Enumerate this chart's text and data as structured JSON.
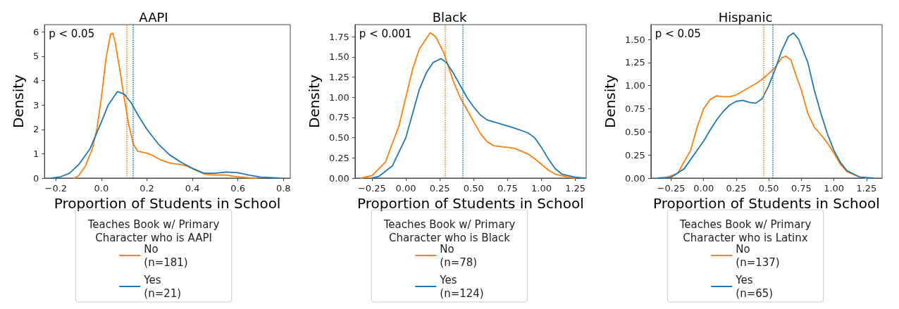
{
  "chart_data": [
    {
      "type": "line",
      "title": "AAPI",
      "xlabel": "Proportion of Students in School",
      "ylabel": "Density",
      "legend_title": "Teaches Book w/ Primary\nCharacter who is AAPI",
      "legend": "bottom",
      "grid": false,
      "marker": "none",
      "line_style": "solid",
      "annotations": [
        "p < 0.05"
      ],
      "xlim": [
        -0.25,
        0.83
      ],
      "ylim": [
        0,
        6.3
      ],
      "xticks": [
        {
          "value": -0.2,
          "label": "−0.2"
        },
        {
          "value": 0,
          "label": "0.0"
        },
        {
          "value": 0.2,
          "label": "0.2"
        },
        {
          "value": 0.4,
          "label": "0.4"
        },
        {
          "value": 0.6,
          "label": "0.6"
        },
        {
          "value": 0.8,
          "label": "0.8"
        }
      ],
      "yticks": [
        0,
        1,
        2,
        3,
        4,
        5,
        6
      ],
      "ref_lines": [
        {
          "axis": "x",
          "value": 0.11,
          "color": "#ff7f0e",
          "line_style": "dotted"
        },
        {
          "axis": "x",
          "value": 0.14,
          "color": "#1f77b4",
          "line_style": "dotted"
        }
      ],
      "series": [
        {
          "name": "No\n(n=181)",
          "color": "#ff7f0e",
          "x": [
            -0.12,
            -0.1,
            -0.07,
            -0.04,
            -0.02,
            0.0,
            0.02,
            0.04,
            0.05,
            0.06,
            0.08,
            0.1,
            0.12,
            0.14,
            0.16,
            0.2,
            0.22,
            0.26,
            0.3,
            0.35,
            0.38,
            0.42,
            0.46,
            0.5,
            0.55,
            0.6,
            0.65,
            0.68
          ],
          "values": [
            0,
            0.1,
            0.5,
            1.2,
            2.0,
            3.3,
            4.9,
            5.9,
            5.95,
            5.6,
            4.5,
            3.3,
            2.2,
            1.4,
            1.1,
            1.02,
            0.95,
            0.75,
            0.62,
            0.55,
            0.48,
            0.3,
            0.15,
            0.13,
            0.12,
            0.05,
            0.01,
            0
          ]
        },
        {
          "name": "Yes\n(n=21)",
          "color": "#1f77b4",
          "x": [
            -0.22,
            -0.18,
            -0.14,
            -0.1,
            -0.05,
            0.0,
            0.03,
            0.07,
            0.1,
            0.13,
            0.16,
            0.2,
            0.25,
            0.3,
            0.35,
            0.4,
            0.45,
            0.5,
            0.55,
            0.6,
            0.65,
            0.7,
            0.78
          ],
          "values": [
            0,
            0.05,
            0.2,
            0.55,
            1.2,
            2.3,
            3.0,
            3.55,
            3.45,
            3.1,
            2.6,
            2.0,
            1.4,
            0.95,
            0.65,
            0.4,
            0.2,
            0.2,
            0.25,
            0.22,
            0.12,
            0.04,
            0
          ]
        }
      ]
    },
    {
      "type": "line",
      "title": "Black",
      "xlabel": "Proportion of Students in School",
      "ylabel": "Density",
      "legend_title": "Teaches Book w/ Primary\nCharacter who is Black",
      "legend": "bottom",
      "grid": false,
      "marker": "none",
      "line_style": "solid",
      "annotations": [
        "p < 0.001"
      ],
      "xlim": [
        -0.375,
        1.33
      ],
      "ylim": [
        0,
        1.9
      ],
      "xticks": [
        {
          "value": -0.25,
          "label": "−0.25"
        },
        {
          "value": 0,
          "label": "0.00"
        },
        {
          "value": 0.25,
          "label": "0.25"
        },
        {
          "value": 0.5,
          "label": "0.50"
        },
        {
          "value": 0.75,
          "label": "0.75"
        },
        {
          "value": 1,
          "label": "1.00"
        },
        {
          "value": 1.25,
          "label": "1.25"
        }
      ],
      "yticks": [
        {
          "value": 0,
          "label": "0.00"
        },
        {
          "value": 0.25,
          "label": "0.25"
        },
        {
          "value": 0.5,
          "label": "0.50"
        },
        {
          "value": 0.75,
          "label": "0.75"
        },
        {
          "value": 1,
          "label": "1.00"
        },
        {
          "value": 1.25,
          "label": "1.25"
        },
        {
          "value": 1.5,
          "label": "1.50"
        },
        {
          "value": 1.75,
          "label": "1.75"
        }
      ],
      "ref_lines": [
        {
          "axis": "x",
          "value": 0.29,
          "color": "#ff7f0e",
          "line_style": "dotted"
        },
        {
          "axis": "x",
          "value": 0.42,
          "color": "#1f77b4",
          "line_style": "dotted"
        }
      ],
      "series": [
        {
          "name": "No\n(n=78)",
          "color": "#ff7f0e",
          "x": [
            -0.33,
            -0.25,
            -0.15,
            -0.05,
            0.0,
            0.05,
            0.1,
            0.18,
            0.22,
            0.28,
            0.3,
            0.35,
            0.4,
            0.45,
            0.5,
            0.55,
            0.6,
            0.65,
            0.75,
            0.8,
            0.9,
            0.95,
            1.0,
            1.05,
            1.1,
            1.2,
            1.25
          ],
          "values": [
            0,
            0.03,
            0.2,
            0.65,
            1.0,
            1.35,
            1.6,
            1.8,
            1.75,
            1.55,
            1.45,
            1.2,
            1.0,
            0.85,
            0.7,
            0.55,
            0.45,
            0.4,
            0.38,
            0.37,
            0.3,
            0.24,
            0.17,
            0.1,
            0.05,
            0.01,
            0
          ]
        },
        {
          "name": "Yes\n(n=124)",
          "color": "#1f77b4",
          "x": [
            -0.25,
            -0.2,
            -0.1,
            0.0,
            0.05,
            0.1,
            0.15,
            0.2,
            0.26,
            0.3,
            0.35,
            0.4,
            0.45,
            0.5,
            0.55,
            0.6,
            0.7,
            0.8,
            0.9,
            0.95,
            1.0,
            1.05,
            1.1,
            1.15,
            1.25,
            1.32
          ],
          "values": [
            0,
            0.02,
            0.15,
            0.5,
            0.8,
            1.1,
            1.3,
            1.43,
            1.48,
            1.43,
            1.3,
            1.15,
            1.0,
            0.88,
            0.78,
            0.72,
            0.67,
            0.62,
            0.56,
            0.5,
            0.38,
            0.24,
            0.12,
            0.05,
            0.01,
            0
          ]
        }
      ]
    },
    {
      "type": "line",
      "title": "Hispanic",
      "xlabel": "Proportion of Students in School",
      "ylabel": "Density",
      "legend_title": "Teaches Book w/ Primary\nCharacter who is Latinx",
      "legend": "bottom",
      "grid": false,
      "marker": "none",
      "line_style": "solid",
      "annotations": [
        "p < 0.05"
      ],
      "xlim": [
        -0.405,
        1.37
      ],
      "ylim": [
        0,
        1.66
      ],
      "xticks": [
        {
          "value": -0.25,
          "label": "−0.25"
        },
        {
          "value": 0,
          "label": "0.00"
        },
        {
          "value": 0.25,
          "label": "0.25"
        },
        {
          "value": 0.5,
          "label": "0.50"
        },
        {
          "value": 0.75,
          "label": "0.75"
        },
        {
          "value": 1,
          "label": "1.00"
        },
        {
          "value": 1.25,
          "label": "1.25"
        }
      ],
      "yticks": [
        {
          "value": 0,
          "label": "0.00"
        },
        {
          "value": 0.25,
          "label": "0.25"
        },
        {
          "value": 0.5,
          "label": "0.50"
        },
        {
          "value": 0.75,
          "label": "0.75"
        },
        {
          "value": 1,
          "label": "1.00"
        },
        {
          "value": 1.25,
          "label": "1.25"
        },
        {
          "value": 1.5,
          "label": "1.50"
        }
      ],
      "ref_lines": [
        {
          "axis": "x",
          "value": 0.46,
          "color": "#ff7f0e",
          "line_style": "dotted"
        },
        {
          "axis": "x",
          "value": 0.53,
          "color": "#1f77b4",
          "line_style": "dotted"
        }
      ],
      "series": [
        {
          "name": "No\n(n=137)",
          "color": "#ff7f0e",
          "x": [
            -0.3,
            -0.2,
            -0.1,
            -0.05,
            0.0,
            0.05,
            0.1,
            0.15,
            0.2,
            0.25,
            0.3,
            0.35,
            0.4,
            0.45,
            0.5,
            0.55,
            0.6,
            0.63,
            0.67,
            0.7,
            0.75,
            0.8,
            0.85,
            0.9,
            0.95,
            1.0,
            1.05,
            1.1,
            1.2,
            1.25
          ],
          "values": [
            0,
            0.05,
            0.3,
            0.55,
            0.75,
            0.85,
            0.89,
            0.88,
            0.88,
            0.9,
            0.94,
            0.98,
            1.02,
            1.07,
            1.13,
            1.2,
            1.3,
            1.32,
            1.28,
            1.15,
            0.95,
            0.7,
            0.55,
            0.47,
            0.38,
            0.27,
            0.15,
            0.07,
            0.01,
            0
          ]
        },
        {
          "name": "Yes\n(n=65)",
          "color": "#1f77b4",
          "x": [
            -0.35,
            -0.25,
            -0.15,
            -0.05,
            0.0,
            0.05,
            0.1,
            0.15,
            0.2,
            0.25,
            0.3,
            0.35,
            0.4,
            0.45,
            0.5,
            0.55,
            0.6,
            0.65,
            0.69,
            0.73,
            0.8,
            0.85,
            0.9,
            0.95,
            1.0,
            1.05,
            1.1,
            1.2,
            1.3
          ],
          "values": [
            0,
            0.01,
            0.1,
            0.3,
            0.4,
            0.52,
            0.63,
            0.72,
            0.79,
            0.83,
            0.84,
            0.82,
            0.81,
            0.86,
            1.0,
            1.18,
            1.38,
            1.53,
            1.57,
            1.5,
            1.25,
            0.95,
            0.7,
            0.48,
            0.3,
            0.17,
            0.08,
            0.01,
            0
          ]
        }
      ]
    }
  ]
}
